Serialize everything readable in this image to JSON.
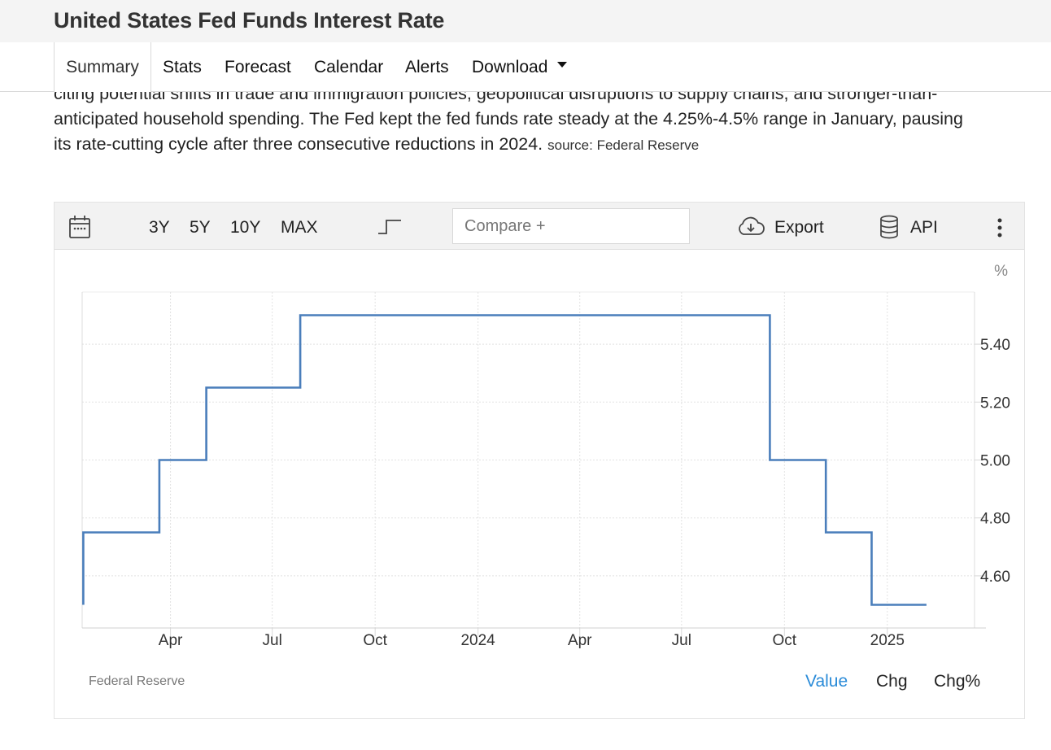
{
  "header": {
    "title": "United States Fed Funds Interest Rate"
  },
  "tabs": [
    {
      "label": "Summary"
    },
    {
      "label": "Stats"
    },
    {
      "label": "Forecast"
    },
    {
      "label": "Calendar"
    },
    {
      "label": "Alerts"
    },
    {
      "label": "Download"
    }
  ],
  "description": {
    "line1": "citing potential shifts in trade and immigration policies, geopolitical disruptions to supply chains, and stronger-than-",
    "line2": "anticipated household spending. The Fed kept the fed funds rate steady at the 4.25%-4.5% range in January, pausing",
    "line3": "its rate-cutting cycle after three consecutive reductions in 2024.",
    "source": "source: Federal Reserve"
  },
  "toolbar": {
    "ranges": [
      "3Y",
      "5Y",
      "10Y",
      "MAX"
    ],
    "compare_placeholder": "Compare +",
    "export_label": "Export",
    "api_label": "API",
    "icons": [
      "calendar-icon",
      "step-chart-icon",
      "cloud-download-icon",
      "database-icon",
      "more-vertical-icon"
    ]
  },
  "chart_data": {
    "type": "line",
    "step": true,
    "unit_label": "%",
    "ylim": [
      4.42,
      5.58
    ],
    "y_ticks": [
      "4.60",
      "4.80",
      "5.00",
      "5.20",
      "5.40"
    ],
    "x_ticks": [
      "Apr",
      "Jul",
      "Oct",
      "2024",
      "Apr",
      "Jul",
      "Oct",
      "2025"
    ],
    "x_tick_dates": [
      "2023-04-01",
      "2023-07-01",
      "2023-10-01",
      "2024-01-01",
      "2024-04-01",
      "2024-07-01",
      "2024-10-01",
      "2025-01-01"
    ],
    "xlim": [
      "2023-01-12",
      "2025-03-20"
    ],
    "grid": true,
    "series": [
      {
        "color": "#4a7ebb",
        "x": [
          "2023-01-13",
          "2023-03-22",
          "2023-05-03",
          "2023-07-26",
          "2024-09-18",
          "2024-11-07",
          "2024-12-18",
          "2025-02-05"
        ],
        "y": [
          4.75,
          5.0,
          5.25,
          5.5,
          5.0,
          4.75,
          4.5,
          4.5
        ]
      }
    ],
    "source_label": "Federal Reserve",
    "modes": [
      {
        "label": "Value",
        "selected": true
      },
      {
        "label": "Chg",
        "selected": false
      },
      {
        "label": "Chg%",
        "selected": false
      }
    ]
  }
}
